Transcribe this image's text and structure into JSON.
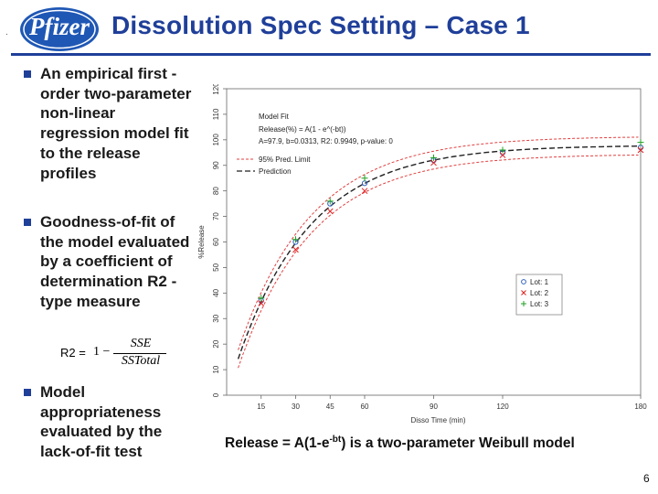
{
  "header": {
    "title": "Dissolution Spec Setting – Case 1",
    "logo_text": "Pfizer",
    "brand_color": "#1f3f99",
    "corner_mark": "."
  },
  "bullets": [
    {
      "text": "An empirical first -order two-parameter non-linear regression model fit to the release profiles"
    },
    {
      "text": "Goodness-of-fit of the model evaluated by a coefficient of determination R2 -type measure"
    },
    {
      "text": "Model appropriateness evaluated by the lack-of-fit test"
    }
  ],
  "formula": {
    "lhs": "R2 =",
    "one_minus": "1 −",
    "numerator": "SSE",
    "denominator": "SSTotal"
  },
  "caption": {
    "prefix": "Release = A(1-e",
    "superscript": "-bt",
    "suffix": ") is a two-parameter Weibull model"
  },
  "page_number": "6",
  "chart_data": {
    "type": "scatter",
    "xlabel": "Disso Time (min)",
    "ylabel": "%Release",
    "xlim": [
      0,
      180
    ],
    "ylim": [
      0,
      120
    ],
    "xticks": [
      15,
      30,
      45,
      60,
      90,
      120,
      180
    ],
    "yticks": [
      0,
      10,
      20,
      30,
      40,
      50,
      60,
      70,
      80,
      90,
      100,
      110,
      120
    ],
    "legend_top": {
      "line1": "Model Fit",
      "line2": "Release(%) = A(1 - e^(-bt))",
      "line3": "A=97.9, b=0.0313, R2: 0.9949, p-value: 0",
      "line4": "95% Pred. Limit",
      "line5": "Prediction"
    },
    "legend_position": "top-left",
    "model": {
      "A": 97.9,
      "b": 0.0313
    },
    "pred_limit_halfwidth": 3.5,
    "series": [
      {
        "name": "Lot: 1",
        "marker": "circle",
        "color": "#3060c0",
        "x": [
          15,
          30,
          45,
          60,
          90,
          120,
          180
        ],
        "y": [
          37,
          60,
          75,
          83,
          92,
          95,
          97
        ]
      },
      {
        "name": "Lot: 2",
        "marker": "x",
        "color": "#e02020",
        "x": [
          15,
          30,
          45,
          60,
          90,
          120,
          180
        ],
        "y": [
          36,
          57,
          72,
          80,
          91,
          94,
          96
        ]
      },
      {
        "name": "Lot: 3",
        "marker": "plus",
        "color": "#20a020",
        "x": [
          15,
          30,
          45,
          60,
          90,
          120,
          180
        ],
        "y": [
          38,
          61,
          76,
          85,
          93,
          96,
          99
        ]
      }
    ]
  }
}
